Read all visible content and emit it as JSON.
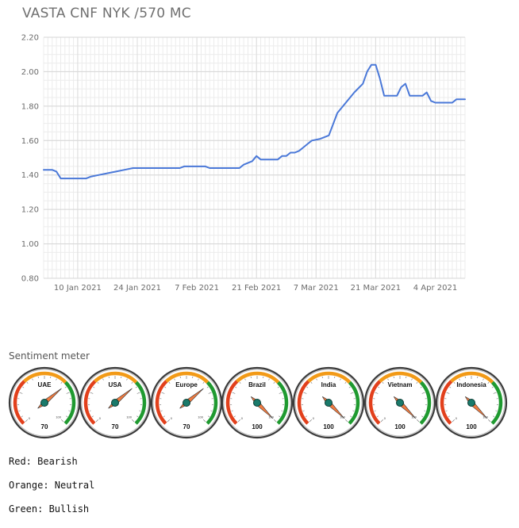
{
  "chart_data": {
    "type": "line",
    "title": "VASTA CNF NYK /570 MC",
    "xlabel": "",
    "ylabel": "",
    "ylim": [
      0.8,
      2.2
    ],
    "y_ticks": [
      "0.80",
      "1.00",
      "1.20",
      "1.40",
      "1.60",
      "1.80",
      "2.00",
      "2.20"
    ],
    "x_range": [
      "2021-01-02",
      "2021-04-11"
    ],
    "x_ticks": [
      {
        "date": "2021-01-10",
        "label": "10 Jan 2021"
      },
      {
        "date": "2021-01-24",
        "label": "24 Jan 2021"
      },
      {
        "date": "2021-02-07",
        "label": "7 Feb 2021"
      },
      {
        "date": "2021-02-21",
        "label": "21 Feb 2021"
      },
      {
        "date": "2021-03-07",
        "label": "7 Mar 2021"
      },
      {
        "date": "2021-03-21",
        "label": "21 Mar 2021"
      },
      {
        "date": "2021-04-04",
        "label": "4 Apr 2021"
      }
    ],
    "grid": true,
    "series": [
      {
        "color": "#4a78d8",
        "points": [
          [
            "2021-01-02",
            1.43
          ],
          [
            "2021-01-04",
            1.43
          ],
          [
            "2021-01-05",
            1.42
          ],
          [
            "2021-01-06",
            1.38
          ],
          [
            "2021-01-09",
            1.38
          ],
          [
            "2021-01-10",
            1.38
          ],
          [
            "2021-01-11",
            1.38
          ],
          [
            "2021-01-12",
            1.38
          ],
          [
            "2021-01-13",
            1.39
          ],
          [
            "2021-01-15",
            1.4
          ],
          [
            "2021-01-17",
            1.41
          ],
          [
            "2021-01-19",
            1.42
          ],
          [
            "2021-01-21",
            1.43
          ],
          [
            "2021-01-23",
            1.44
          ],
          [
            "2021-01-26",
            1.44
          ],
          [
            "2021-01-29",
            1.44
          ],
          [
            "2021-02-01",
            1.44
          ],
          [
            "2021-02-03",
            1.44
          ],
          [
            "2021-02-04",
            1.45
          ],
          [
            "2021-02-06",
            1.45
          ],
          [
            "2021-02-09",
            1.45
          ],
          [
            "2021-02-10",
            1.44
          ],
          [
            "2021-02-12",
            1.44
          ],
          [
            "2021-02-15",
            1.44
          ],
          [
            "2021-02-17",
            1.44
          ],
          [
            "2021-02-18",
            1.46
          ],
          [
            "2021-02-20",
            1.48
          ],
          [
            "2021-02-21",
            1.51
          ],
          [
            "2021-02-22",
            1.49
          ],
          [
            "2021-02-24",
            1.49
          ],
          [
            "2021-02-26",
            1.49
          ],
          [
            "2021-02-27",
            1.51
          ],
          [
            "2021-02-28",
            1.51
          ],
          [
            "2021-03-01",
            1.53
          ],
          [
            "2021-03-02",
            1.53
          ],
          [
            "2021-03-03",
            1.54
          ],
          [
            "2021-03-04",
            1.56
          ],
          [
            "2021-03-05",
            1.58
          ],
          [
            "2021-03-06",
            1.6
          ],
          [
            "2021-03-08",
            1.61
          ],
          [
            "2021-03-10",
            1.63
          ],
          [
            "2021-03-12",
            1.76
          ],
          [
            "2021-03-14",
            1.82
          ],
          [
            "2021-03-16",
            1.88
          ],
          [
            "2021-03-18",
            1.93
          ],
          [
            "2021-03-19",
            2.0
          ],
          [
            "2021-03-20",
            2.04
          ],
          [
            "2021-03-21",
            2.04
          ],
          [
            "2021-03-22",
            1.96
          ],
          [
            "2021-03-23",
            1.86
          ],
          [
            "2021-03-24",
            1.86
          ],
          [
            "2021-03-26",
            1.86
          ],
          [
            "2021-03-27",
            1.91
          ],
          [
            "2021-03-28",
            1.93
          ],
          [
            "2021-03-29",
            1.86
          ],
          [
            "2021-03-30",
            1.86
          ],
          [
            "2021-03-31",
            1.86
          ],
          [
            "2021-04-01",
            1.86
          ],
          [
            "2021-04-02",
            1.88
          ],
          [
            "2021-04-03",
            1.83
          ],
          [
            "2021-04-04",
            1.82
          ],
          [
            "2021-04-06",
            1.82
          ],
          [
            "2021-04-07",
            1.82
          ],
          [
            "2021-04-08",
            1.82
          ],
          [
            "2021-04-09",
            1.84
          ],
          [
            "2021-04-10",
            1.84
          ],
          [
            "2021-04-11",
            1.84
          ]
        ]
      }
    ]
  },
  "sentiment": {
    "title": "Sentiment meter",
    "scale_min_label": "0",
    "scale_max_label": "100",
    "zone_colors": {
      "bearish": "#e2401c",
      "neutral": "#f29a17",
      "bullish": "#1f9a30"
    },
    "needle_color": "#f07b40",
    "hub_color": "#1a7a6a",
    "gauges": [
      {
        "label": "UAE",
        "value": "70"
      },
      {
        "label": "USA",
        "value": "70"
      },
      {
        "label": "Europe",
        "value": "70"
      },
      {
        "label": "Brazil",
        "value": "100"
      },
      {
        "label": "India",
        "value": "100"
      },
      {
        "label": "Vietnam",
        "value": "100"
      },
      {
        "label": "Indonesia",
        "value": "100"
      }
    ]
  },
  "legend": {
    "red": "Red: Bearish",
    "orange": "Orange: Neutral",
    "green": "Green: Bullish"
  }
}
